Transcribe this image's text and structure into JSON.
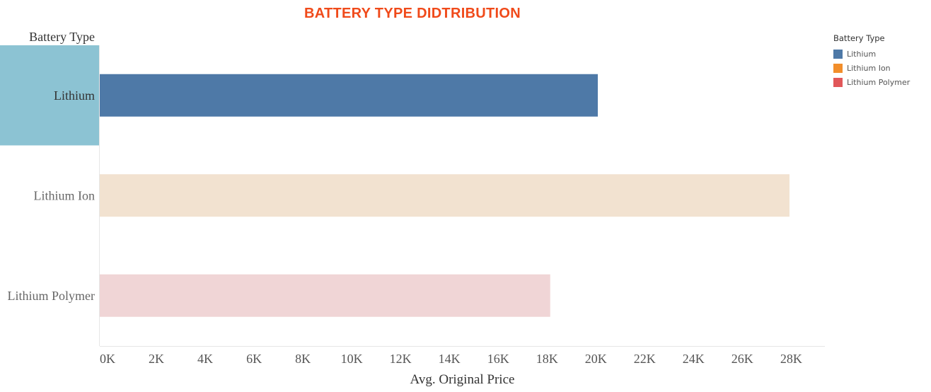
{
  "title": "BATTERY TYPE DIDTRIBUTION",
  "colors": {
    "title": "#f04a1a",
    "highlight": "#8cc3d3",
    "lithium": "#4e79a7",
    "lithium_ion": "#f28e2b",
    "lithium_polymer": "#e15759",
    "lithium_ion_faded": "#f2e2d0",
    "lithium_polymer_faded": "#f0d5d6"
  },
  "legend": {
    "title": "Battery Type",
    "items": [
      {
        "label": "Lithium",
        "color": "#4e79a7"
      },
      {
        "label": "Lithium Ion",
        "color": "#f28e2b"
      },
      {
        "label": "Lithium Polymer",
        "color": "#e15759"
      }
    ]
  },
  "chart_data": {
    "type": "bar",
    "orientation": "horizontal",
    "row_header": "Battery Type",
    "categories": [
      "Lithium",
      "Lithium Ion",
      "Lithium Polymer"
    ],
    "values": [
      20400,
      28250,
      18450
    ],
    "selected_category": "Lithium",
    "bar_colors": [
      "#4e79a7",
      "#f2e2d0",
      "#f0d5d6"
    ],
    "xlabel": "Avg. Original Price",
    "xlim": [
      0,
      29700
    ],
    "xticks": [
      0,
      2000,
      4000,
      6000,
      8000,
      10000,
      12000,
      14000,
      16000,
      18000,
      20000,
      22000,
      24000,
      26000,
      28000
    ],
    "xtick_labels": [
      "0K",
      "2K",
      "4K",
      "6K",
      "8K",
      "10K",
      "12K",
      "14K",
      "16K",
      "18K",
      "20K",
      "22K",
      "24K",
      "26K",
      "28K"
    ],
    "grid": false,
    "legend_position": "top-right"
  }
}
